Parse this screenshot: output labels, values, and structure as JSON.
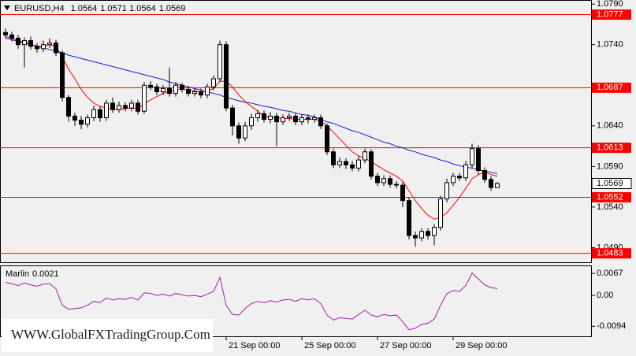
{
  "chart_data": {
    "type": "candlestick",
    "symbol": "EURUSD,H4",
    "categories": [
      null,
      null,
      null,
      null,
      null,
      null,
      null,
      null,
      null,
      null,
      null,
      null,
      null,
      null,
      null,
      null,
      null,
      null,
      null,
      null,
      null,
      null,
      null,
      null,
      null,
      null,
      null,
      null,
      null,
      null,
      null,
      null,
      null,
      null,
      null,
      "21 Sep 00:00",
      null,
      null,
      null,
      null,
      null,
      null,
      null,
      null,
      null,
      null,
      null,
      "25 Sep 00:00",
      null,
      null,
      null,
      null,
      null,
      null,
      null,
      null,
      null,
      null,
      null,
      "27 Sep 00:00",
      null,
      null,
      null,
      null,
      null,
      null,
      null,
      null,
      null,
      null,
      null,
      "29 Sep 00:00",
      null,
      null,
      null,
      null,
      null,
      null,
      null
    ],
    "open": [
      1.0755,
      1.0752,
      1.0748,
      1.074,
      1.0745,
      1.0738,
      1.0735,
      1.074,
      1.0742,
      1.073,
      1.0675,
      1.0652,
      1.0647,
      1.0642,
      1.065,
      1.066,
      1.065,
      1.0668,
      1.066,
      1.0665,
      1.0662,
      1.0668,
      1.0658,
      1.069,
      1.0688,
      1.0682,
      1.0686,
      1.068,
      1.069,
      1.0685,
      1.068,
      1.0682,
      1.0678,
      1.0688,
      1.0698,
      1.074,
      1.0662,
      1.064,
      1.0625,
      1.064,
      1.065,
      1.0655,
      1.0648,
      1.0652,
      1.0645,
      1.065,
      1.0652,
      1.0645,
      1.065,
      1.0648,
      1.065,
      1.064,
      1.0608,
      1.0592,
      1.0596,
      1.0592,
      1.0588,
      1.0598,
      1.0608,
      1.0578,
      1.057,
      1.0575,
      1.0568,
      1.0567,
      1.0548,
      1.0505,
      1.0502,
      1.051,
      1.0505,
      1.0515,
      1.055,
      1.057,
      1.0578,
      1.0576,
      1.0592,
      1.0612,
      1.0585,
      1.0574,
      1.0564
    ],
    "high": [
      1.076,
      1.0756,
      1.0752,
      1.0749,
      1.075,
      1.0742,
      1.0745,
      1.0748,
      1.0746,
      1.0733,
      1.0678,
      1.0656,
      1.0652,
      1.0654,
      1.0665,
      1.0664,
      1.0672,
      1.0675,
      1.067,
      1.0669,
      1.0672,
      1.0672,
      1.0694,
      1.0695,
      1.0692,
      1.069,
      1.0712,
      1.0694,
      1.0693,
      1.0689,
      1.0686,
      1.0686,
      1.0692,
      1.0702,
      1.0745,
      1.0744,
      1.0666,
      1.0644,
      1.0645,
      1.0655,
      1.066,
      1.0659,
      1.0657,
      1.0656,
      1.0654,
      1.0656,
      1.0656,
      1.0654,
      1.0654,
      1.0654,
      1.0654,
      1.0643,
      1.0612,
      1.0601,
      1.06,
      1.0597,
      1.0603,
      1.0612,
      1.0611,
      1.0582,
      1.0579,
      1.0579,
      1.0572,
      1.0571,
      1.0552,
      1.051,
      1.0514,
      1.0514,
      1.0519,
      1.0554,
      1.0575,
      1.0582,
      1.0582,
      1.0597,
      1.0618,
      1.0616,
      1.0589,
      1.0578,
      1.0571
    ],
    "low": [
      1.0748,
      1.0744,
      1.0735,
      1.0712,
      1.0734,
      1.073,
      1.0731,
      1.0736,
      1.0726,
      1.067,
      1.0645,
      1.064,
      1.0636,
      1.0638,
      1.0646,
      1.0645,
      1.0646,
      1.0656,
      1.0656,
      1.0658,
      1.0658,
      1.0654,
      1.0655,
      1.0684,
      1.0678,
      1.0678,
      1.0676,
      1.0676,
      1.0681,
      1.0676,
      1.0676,
      1.0674,
      1.0674,
      1.0684,
      1.0694,
      1.0658,
      1.0628,
      1.0618,
      1.0621,
      1.0635,
      1.0645,
      1.0644,
      1.0643,
      1.0615,
      1.0641,
      1.0646,
      1.0641,
      1.0641,
      1.0643,
      1.0644,
      1.0636,
      1.0604,
      1.0588,
      1.0588,
      1.0587,
      1.0584,
      1.0584,
      1.0594,
      1.0574,
      1.0566,
      1.0566,
      1.0564,
      1.0563,
      1.054,
      1.05,
      1.0491,
      1.0498,
      1.05,
      1.0493,
      1.0511,
      1.0546,
      1.0566,
      1.0572,
      1.0572,
      1.0588,
      1.058,
      1.057,
      1.056,
      1.0564
    ],
    "close": [
      1.0752,
      1.0748,
      1.074,
      1.0745,
      1.0738,
      1.0735,
      1.074,
      1.0742,
      1.073,
      1.0675,
      1.0652,
      1.0647,
      1.0642,
      1.065,
      1.066,
      1.065,
      1.0668,
      1.066,
      1.0665,
      1.0662,
      1.0668,
      1.0658,
      1.069,
      1.0688,
      1.0682,
      1.0686,
      1.068,
      1.069,
      1.0685,
      1.068,
      1.0682,
      1.0678,
      1.0688,
      1.0698,
      1.074,
      1.0662,
      1.064,
      1.0625,
      1.064,
      1.065,
      1.0655,
      1.0648,
      1.0652,
      1.0645,
      1.065,
      1.0652,
      1.0645,
      1.065,
      1.0648,
      1.065,
      1.064,
      1.0608,
      1.0592,
      1.0596,
      1.0592,
      1.0588,
      1.0598,
      1.0608,
      1.0578,
      1.057,
      1.0575,
      1.0568,
      1.0567,
      1.0548,
      1.0505,
      1.0502,
      1.051,
      1.0505,
      1.0515,
      1.055,
      1.057,
      1.0578,
      1.0576,
      1.0592,
      1.0612,
      1.0585,
      1.0574,
      1.0564,
      1.0569
    ],
    "up_color": "#ffffff",
    "down_color": "#000000",
    "ylim": [
      1.0472,
      1.0795
    ],
    "yticks": [
      {
        "value": 1.079,
        "label": "1.0790"
      },
      {
        "value": 1.074,
        "label": "1.0740"
      },
      {
        "value": 1.064,
        "label": "1.0640"
      },
      {
        "value": 1.059,
        "label": "1.0590"
      },
      {
        "value": 1.054,
        "label": "1.0540"
      },
      {
        "value": 1.049,
        "label": "1.0490"
      }
    ],
    "levels": {
      "color": "#ff0000",
      "values": [
        1.0777,
        1.0687,
        1.0613,
        1.0552,
        1.0483
      ]
    },
    "moving_averages": [
      {
        "color": "#ff0000",
        "values": [
          1.075,
          1.0748,
          1.0745,
          1.0743,
          1.0741,
          1.0738,
          1.0738,
          1.074,
          1.0738,
          1.0725,
          1.071,
          1.0698,
          1.0685,
          1.0675,
          1.0668,
          1.0664,
          1.0662,
          1.066,
          1.066,
          1.0661,
          1.0662,
          1.0661,
          1.0667,
          1.0672,
          1.0676,
          1.068,
          1.0682,
          1.0684,
          1.0685,
          1.0684,
          1.0683,
          1.0682,
          1.0683,
          1.0686,
          1.0695,
          1.0695,
          1.0688,
          1.0678,
          1.067,
          1.0664,
          1.0658,
          1.0652,
          1.065,
          1.065,
          1.0649,
          1.0649,
          1.0648,
          1.0648,
          1.0648,
          1.0648,
          1.0646,
          1.064,
          1.0632,
          1.0624,
          1.0616,
          1.0608,
          1.0603,
          1.06,
          1.0596,
          1.0591,
          1.0586,
          1.0582,
          1.0578,
          1.0572,
          1.056,
          1.0548,
          1.0538,
          1.053,
          1.0525,
          1.0527,
          1.0533,
          1.0542,
          1.0552,
          1.0563,
          1.0575,
          1.058,
          1.0583,
          1.058,
          1.0578
        ]
      },
      {
        "color": "#1a1acc",
        "values": [
          1.0748,
          1.0746,
          1.0744,
          1.0742,
          1.074,
          1.0738,
          1.0736,
          1.0734,
          1.0732,
          1.073,
          1.0727,
          1.0725,
          1.0723,
          1.0721,
          1.0719,
          1.0717,
          1.0715,
          1.0713,
          1.0711,
          1.0709,
          1.0707,
          1.0705,
          1.0703,
          1.0701,
          1.0699,
          1.0697,
          1.0694,
          1.0692,
          1.069,
          1.0688,
          1.0686,
          1.0684,
          1.0682,
          1.068,
          1.0678,
          1.0675,
          1.0673,
          1.0671,
          1.0669,
          1.0668,
          1.0666,
          1.0664,
          1.0663,
          1.0661,
          1.0659,
          1.0658,
          1.0656,
          1.0654,
          1.0653,
          1.0651,
          1.0648,
          1.0645,
          1.0643,
          1.064,
          1.0637,
          1.0634,
          1.0632,
          1.0629,
          1.0626,
          1.0623,
          1.062,
          1.0618,
          1.0615,
          1.0613,
          1.061,
          1.0608,
          1.0605,
          1.0603,
          1.0601,
          1.0598,
          1.0596,
          1.0593,
          1.0591,
          1.0589,
          1.0588,
          1.0586,
          1.0584,
          1.0583,
          1.0581
        ]
      }
    ],
    "indicator": {
      "name": "Marlin",
      "color": "#a020a0",
      "values": [
        0.004,
        0.0036,
        0.003,
        0.0038,
        0.0032,
        0.0028,
        0.0034,
        0.0036,
        0.002,
        -0.003,
        -0.0042,
        -0.004,
        -0.0038,
        -0.003,
        -0.0018,
        -0.0022,
        -0.0008,
        -0.0014,
        -0.001,
        -0.0012,
        -0.0006,
        -0.0014,
        0.0008,
        0.0006,
        0.0,
        0.0004,
        -0.0002,
        0.0006,
        0.0002,
        -0.0002,
        0.0,
        -0.0004,
        0.0004,
        0.0012,
        0.0055,
        -0.003,
        -0.0058,
        -0.006,
        -0.004,
        -0.0025,
        -0.0018,
        -0.0022,
        -0.0016,
        -0.002,
        -0.0014,
        -0.0012,
        -0.0018,
        -0.001,
        -0.0014,
        -0.001,
        -0.0025,
        -0.006,
        -0.0075,
        -0.0068,
        -0.007,
        -0.0072,
        -0.0058,
        -0.0045,
        -0.006,
        -0.0065,
        -0.0058,
        -0.0062,
        -0.006,
        -0.008,
        -0.0105,
        -0.01,
        -0.0088,
        -0.0085,
        -0.0072,
        -0.003,
        0.0005,
        0.0015,
        0.0012,
        0.003,
        0.0068,
        0.005,
        0.0032,
        0.0024,
        0.0021
      ],
      "ylim": [
        -0.0127,
        0.0089
      ],
      "yticks": [
        0.0067,
        {
          "value": 0,
          "label": "0.00"
        },
        -0.0094
      ]
    },
    "watermark": "WWW.GlobalFXTradingGroup.Com"
  }
}
